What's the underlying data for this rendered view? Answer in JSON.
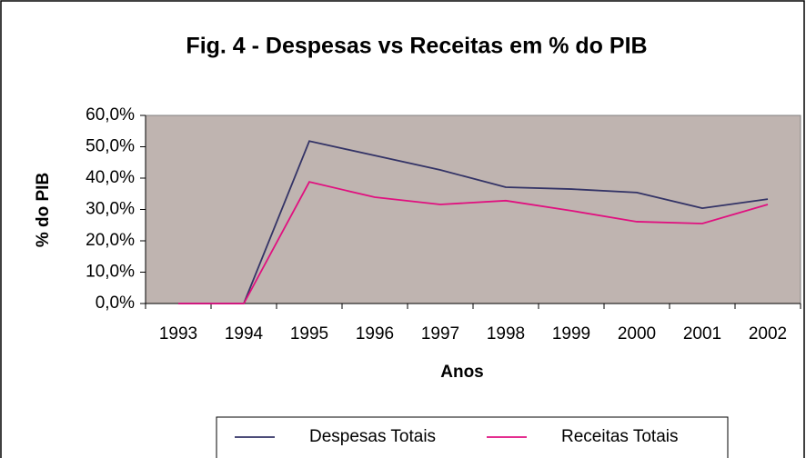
{
  "chart_data": {
    "type": "line",
    "title": "Fig. 4 - Despesas vs Receitas em % do PIB",
    "x_label": "Anos",
    "y_label": "% do PIB",
    "categories": [
      "1993",
      "1994",
      "1995",
      "1996",
      "1997",
      "1998",
      "1999",
      "2000",
      "2001",
      "2002"
    ],
    "series": [
      {
        "name": "Despesas Totais",
        "color": "#333366",
        "values": [
          0,
          0,
          51.8,
          47.2,
          42.6,
          37.1,
          36.5,
          35.4,
          30.4,
          33.3
        ]
      },
      {
        "name": "Receitas Totais",
        "color": "#e0107f",
        "values": [
          0,
          0,
          38.8,
          33.9,
          31.6,
          32.8,
          29.6,
          26.1,
          25.5,
          31.6
        ]
      }
    ],
    "ylim": [
      0,
      60
    ],
    "yticks": [
      {
        "value": 0,
        "label": "0,0%"
      },
      {
        "value": 10,
        "label": "10,0%"
      },
      {
        "value": 20,
        "label": "20,0%"
      },
      {
        "value": 30,
        "label": "30,0%"
      },
      {
        "value": 40,
        "label": "40,0%"
      },
      {
        "value": 50,
        "label": "50,0%"
      },
      {
        "value": 60,
        "label": "60,0%"
      }
    ],
    "legend": "bottom",
    "plot_background": "#bfb4b0"
  }
}
